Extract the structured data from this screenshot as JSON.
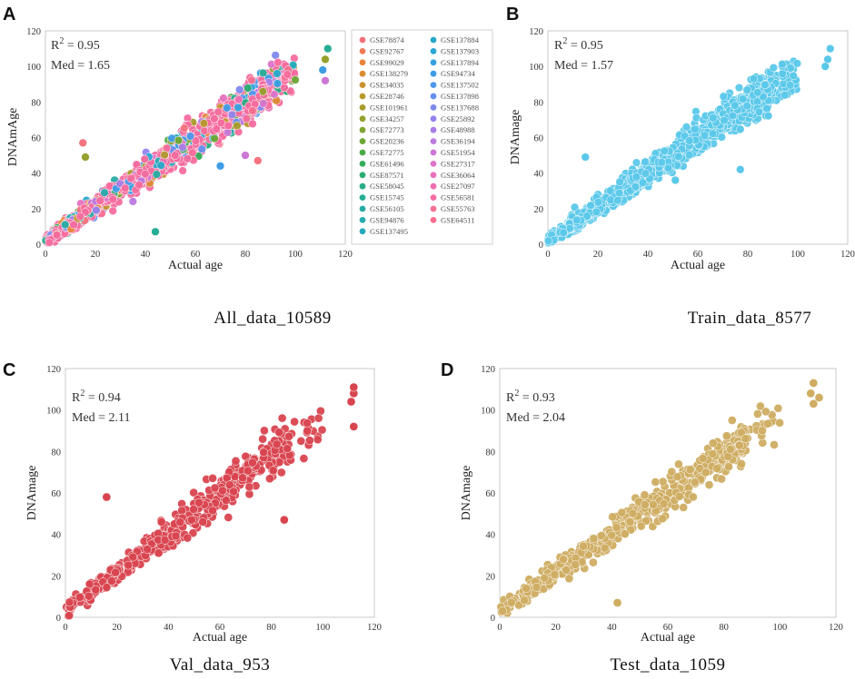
{
  "figure": {
    "panels": [
      {
        "letter": "A",
        "subtitle": "All_data_10589",
        "r2_label": "0.95",
        "med_label": "Med = 1.65",
        "ylabel": "DNAmAge",
        "xlabel": "Actual age",
        "color": "multi"
      },
      {
        "letter": "B",
        "subtitle": "Train_data_8577",
        "r2_label": "0.95",
        "med_label": "Med = 1.57",
        "ylabel": "DNAmage",
        "xlabel": "Actual age",
        "color": "#5bc8ea"
      },
      {
        "letter": "C",
        "subtitle": "Val_data_953",
        "r2_label": "0.94",
        "med_label": "Med = 2.11",
        "ylabel": "DNAmage",
        "xlabel": "Actual age",
        "color": "#d9454f"
      },
      {
        "letter": "D",
        "subtitle": "Test_data_1059",
        "r2_label": "0.93",
        "med_label": "Med = 2.04",
        "ylabel": "DNAmage",
        "xlabel": "Actual age",
        "color": "#cfad62"
      }
    ],
    "r2_prefix": "R",
    "r2_sup": "2",
    "r2_eq": " = "
  },
  "chart_data": [
    {
      "type": "scatter",
      "title": "All_data_10589",
      "xlabel": "Actual age",
      "ylabel": "DNAmAge",
      "xlim": [
        0,
        120
      ],
      "ylim": [
        0,
        120
      ],
      "xticks": [
        0,
        20,
        40,
        60,
        80,
        100,
        120
      ],
      "yticks": [
        0,
        20,
        40,
        60,
        80,
        100,
        120
      ],
      "annotations": [
        "R² = 0.95",
        "Med = 1.65"
      ],
      "legend": {
        "placement": "right",
        "entries": [
          {
            "name": "GSE78874",
            "color": "#f3737e"
          },
          {
            "name": "GSE92767",
            "color": "#f07a55"
          },
          {
            "name": "GSE99029",
            "color": "#e8853a"
          },
          {
            "name": "GSE138279",
            "color": "#d98c32"
          },
          {
            "name": "GSE34035",
            "color": "#c9922e"
          },
          {
            "name": "GSE28746",
            "color": "#b8982c"
          },
          {
            "name": "GSE101961",
            "color": "#a89c2b"
          },
          {
            "name": "GSE34257",
            "color": "#96a02d"
          },
          {
            "name": "GSE72773",
            "color": "#82a430"
          },
          {
            "name": "GSE20236",
            "color": "#6aa836"
          },
          {
            "name": "GSE72775",
            "color": "#4dab43"
          },
          {
            "name": "GSE61496",
            "color": "#33ad5a"
          },
          {
            "name": "GSE87571",
            "color": "#2aad72"
          },
          {
            "name": "GSE58045",
            "color": "#27ad85"
          },
          {
            "name": "GSE15745",
            "color": "#26ad95"
          },
          {
            "name": "GSE56105",
            "color": "#25aca3"
          },
          {
            "name": "GSE94876",
            "color": "#25abb0"
          },
          {
            "name": "GSE137495",
            "color": "#26aabd"
          },
          {
            "name": "GSE137884",
            "color": "#28a8c9"
          },
          {
            "name": "GSE137903",
            "color": "#2ba5d4"
          },
          {
            "name": "GSE137894",
            "color": "#33a2de"
          },
          {
            "name": "GSE94734",
            "color": "#3f9de6"
          },
          {
            "name": "GSE137502",
            "color": "#4f97ec"
          },
          {
            "name": "GSE137898",
            "color": "#6590ef"
          },
          {
            "name": "GSE137688",
            "color": "#7d89ef"
          },
          {
            "name": "GSE25892",
            "color": "#9483ec"
          },
          {
            "name": "GSE48988",
            "color": "#a87ee6"
          },
          {
            "name": "GSE36194",
            "color": "#bb7adf"
          },
          {
            "name": "GSE51954",
            "color": "#cc76d6"
          },
          {
            "name": "GSE27317",
            "color": "#db73cb"
          },
          {
            "name": "GSE36064",
            "color": "#e771bf"
          },
          {
            "name": "GSE27097",
            "color": "#f06fb1"
          },
          {
            "name": "GSE56581",
            "color": "#f56ea3"
          },
          {
            "name": "GSE55763",
            "color": "#f77095"
          },
          {
            "name": "GSE64511",
            "color": "#f76f8e"
          }
        ]
      },
      "n_points": 10589,
      "trend": {
        "slope": 0.96,
        "intercept": 2.0
      },
      "outliers": [
        [
          15,
          57
        ],
        [
          16,
          49
        ],
        [
          44,
          7
        ],
        [
          70,
          44
        ],
        [
          80,
          50
        ],
        [
          85,
          47
        ],
        [
          112,
          104
        ],
        [
          113,
          110
        ],
        [
          111,
          98
        ],
        [
          112,
          92
        ]
      ]
    },
    {
      "type": "scatter",
      "title": "Train_data_8577",
      "xlabel": "Actual age",
      "ylabel": "DNAmage",
      "xlim": [
        0,
        120
      ],
      "ylim": [
        0,
        120
      ],
      "xticks": [
        0,
        20,
        40,
        60,
        80,
        100,
        120
      ],
      "yticks": [
        0,
        20,
        40,
        60,
        80,
        100,
        120
      ],
      "annotations": [
        "R² = 0.95",
        "Med = 1.57"
      ],
      "n_points": 8577,
      "trend": {
        "slope": 0.96,
        "intercept": 2.0
      },
      "outliers": [
        [
          15,
          49
        ],
        [
          77,
          42
        ],
        [
          51,
          36
        ],
        [
          112,
          104
        ],
        [
          113,
          110
        ],
        [
          111,
          100
        ]
      ]
    },
    {
      "type": "scatter",
      "title": "Val_data_953",
      "xlabel": "Actual age",
      "ylabel": "DNAmage",
      "xlim": [
        0,
        120
      ],
      "ylim": [
        0,
        120
      ],
      "xticks": [
        0,
        20,
        40,
        60,
        80,
        100,
        120
      ],
      "yticks": [
        0,
        20,
        40,
        60,
        80,
        100,
        120
      ],
      "annotations": [
        "R² = 0.94",
        "Med = 2.11"
      ],
      "n_points": 953,
      "trend": {
        "slope": 0.95,
        "intercept": 2.5
      },
      "outliers": [
        [
          16,
          58
        ],
        [
          85,
          47
        ],
        [
          112,
          92
        ],
        [
          112,
          108
        ],
        [
          111,
          104
        ],
        [
          112,
          111
        ]
      ]
    },
    {
      "type": "scatter",
      "title": "Test_data_1059",
      "xlabel": "Actual age",
      "ylabel": "DNAmage",
      "xlim": [
        0,
        120
      ],
      "ylim": [
        0,
        120
      ],
      "xticks": [
        0,
        20,
        40,
        60,
        80,
        100,
        120
      ],
      "yticks": [
        0,
        20,
        40,
        60,
        80,
        100,
        120
      ],
      "annotations": [
        "R² = 0.93",
        "Med = 2.04"
      ],
      "n_points": 1059,
      "trend": {
        "slope": 0.95,
        "intercept": 2.5
      },
      "outliers": [
        [
          42,
          7
        ],
        [
          112,
          113
        ],
        [
          111,
          108
        ],
        [
          112,
          103
        ],
        [
          114,
          106
        ],
        [
          1,
          3
        ]
      ]
    }
  ]
}
